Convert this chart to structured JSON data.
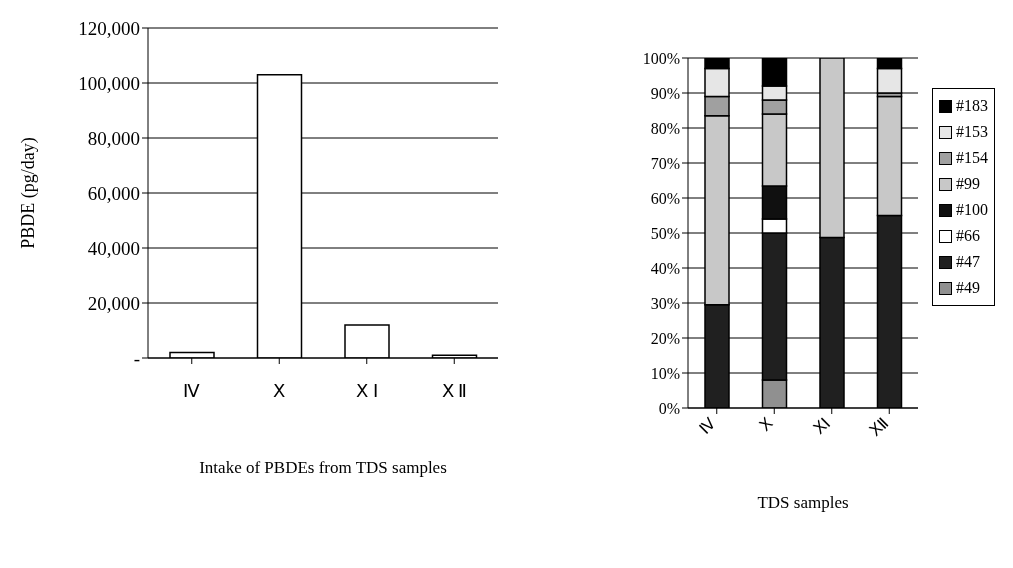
{
  "chart_data": [
    {
      "type": "bar",
      "xlabel": "Intake of PBDEs from TDS samples",
      "ylabel": "PBDE (pg/day)",
      "categories": [
        "Ⅳ",
        "Ⅹ",
        "Ⅹ Ⅰ",
        "Ⅹ Ⅱ"
      ],
      "values": [
        2000,
        103000,
        12000,
        1000
      ],
      "color": "#ffffff",
      "ylim": [
        0,
        120000
      ],
      "yticks": [
        {
          "value": 0,
          "label": "-"
        },
        {
          "value": 20000,
          "label": "20,000"
        },
        {
          "value": 40000,
          "label": "40,000"
        },
        {
          "value": 60000,
          "label": "60,000"
        },
        {
          "value": 80000,
          "label": "80,000"
        },
        {
          "value": 100000,
          "label": "100,000"
        },
        {
          "value": 120000,
          "label": "120,000"
        }
      ],
      "grid": "y",
      "legend": false
    },
    {
      "type": "bar",
      "xlabel": "TDS samples",
      "categories": [
        "Ⅳ",
        "Ⅹ",
        "ⅩⅠ",
        "ⅩⅡ"
      ],
      "stacked": true,
      "ylim": [
        0,
        100
      ],
      "yticks": [
        {
          "value": 0,
          "label": "0%"
        },
        {
          "value": 10,
          "label": "10%"
        },
        {
          "value": 20,
          "label": "20%"
        },
        {
          "value": 30,
          "label": "30%"
        },
        {
          "value": 40,
          "label": "40%"
        },
        {
          "value": 50,
          "label": "50%"
        },
        {
          "value": 60,
          "label": "60%"
        },
        {
          "value": 70,
          "label": "70%"
        },
        {
          "value": 80,
          "label": "80%"
        },
        {
          "value": 90,
          "label": "90%"
        },
        {
          "value": 100,
          "label": "100%"
        }
      ],
      "grid": "y",
      "legend": "right",
      "series": [
        {
          "name": "#49",
          "color": "#909090",
          "values": [
            0,
            8,
            0,
            0
          ]
        },
        {
          "name": "#47",
          "color": "#202020",
          "values": [
            29.5,
            42,
            48.7,
            55
          ]
        },
        {
          "name": "#66",
          "color": "#ffffff",
          "values": [
            0,
            4,
            0,
            0
          ]
        },
        {
          "name": "#100",
          "color": "#101010",
          "values": [
            0,
            9.4,
            0,
            0
          ]
        },
        {
          "name": "#99",
          "color": "#c8c8c8",
          "values": [
            54,
            20.6,
            51.3,
            34
          ]
        },
        {
          "name": "#154",
          "color": "#a0a0a0",
          "values": [
            5.5,
            4,
            0,
            1
          ]
        },
        {
          "name": "#153",
          "color": "#e6e6e6",
          "values": [
            8,
            4,
            0,
            7
          ]
        },
        {
          "name": "#183",
          "color": "#000000",
          "values": [
            3,
            8,
            0,
            3
          ]
        }
      ]
    }
  ]
}
